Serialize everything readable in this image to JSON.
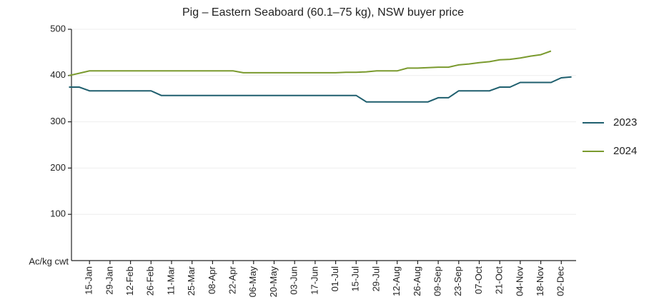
{
  "chart_data": {
    "type": "line",
    "title": "Pig – Eastern Seaboard (60.1–75 kg), NSW buyer price",
    "y_label": "Ac/kg cwt",
    "categories": [
      null,
      null,
      "15-Jan",
      null,
      "29-Jan",
      null,
      "12-Feb",
      null,
      "26-Feb",
      null,
      "11-Mar",
      null,
      "25-Mar",
      null,
      "08-Apr",
      null,
      "22-Apr",
      null,
      "06-May",
      null,
      "20-May",
      null,
      "03-Jun",
      null,
      "17-Jun",
      null,
      "01-Jul",
      null,
      "15-Jul",
      null,
      "29-Jul",
      null,
      "12-Aug",
      null,
      "26-Aug",
      null,
      "09-Sep",
      null,
      "23-Sep",
      null,
      "07-Oct",
      null,
      "21-Oct",
      null,
      "04-Nov",
      null,
      "18-Nov",
      null,
      "02-Dec",
      null
    ],
    "series": [
      {
        "name": "2023",
        "color": "#1f5f6e",
        "values": [
          375,
          375,
          367,
          367,
          367,
          367,
          367,
          367,
          367,
          357,
          357,
          357,
          357,
          357,
          357,
          357,
          357,
          357,
          357,
          357,
          357,
          357,
          357,
          357,
          357,
          357,
          357,
          357,
          357,
          343,
          343,
          343,
          343,
          343,
          343,
          343,
          352,
          352,
          367,
          367,
          367,
          367,
          375,
          375,
          385,
          385,
          385,
          385,
          395,
          397
        ]
      },
      {
        "name": "2024",
        "color": "#7a9a2e",
        "values": [
          400,
          405,
          410,
          410,
          410,
          410,
          410,
          410,
          410,
          410,
          410,
          410,
          410,
          410,
          410,
          410,
          410,
          406,
          406,
          406,
          406,
          406,
          406,
          406,
          406,
          406,
          406,
          407,
          407,
          408,
          410,
          410,
          410,
          416,
          416,
          417,
          418,
          418,
          423,
          425,
          428,
          430,
          434,
          435,
          438,
          442,
          445,
          453,
          null,
          null
        ]
      }
    ],
    "ylim": [
      0,
      500
    ],
    "yticks": [
      100,
      200,
      300,
      400,
      500
    ],
    "grid": true,
    "legend": "right"
  }
}
